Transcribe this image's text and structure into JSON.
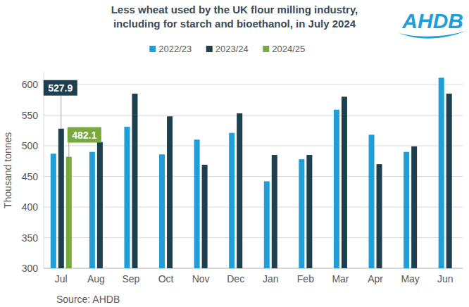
{
  "chart_data": {
    "type": "bar",
    "title": "Less wheat used by the UK flour milling industry, including for starch and bioethanol, in July 2024",
    "y_label": "Thousand tonnes",
    "source": "Source: AHDB",
    "logo": "AHDB",
    "categories": [
      "Jul",
      "Aug",
      "Sep",
      "Oct",
      "Nov",
      "Dec",
      "Jan",
      "Feb",
      "Mar",
      "Apr",
      "May",
      "Jun"
    ],
    "series": [
      {
        "name": "2022/23",
        "color": "#1f9ed8",
        "values": [
          487,
          490,
          531,
          486,
          510,
          521,
          442,
          478,
          559,
          518,
          490,
          611
        ]
      },
      {
        "name": "2023/24",
        "color": "#1d3f4e",
        "values": [
          527.9,
          506,
          585,
          548,
          469,
          553,
          485,
          485,
          580,
          470,
          499,
          585
        ]
      },
      {
        "name": "2024/25",
        "color": "#78a93b",
        "values": [
          482.1,
          null,
          null,
          null,
          null,
          null,
          null,
          null,
          null,
          null,
          null,
          null
        ]
      }
    ],
    "annotations": [
      "527.9",
      "482.1"
    ],
    "ylim": [
      300,
      620
    ],
    "yticks": [
      300,
      350,
      400,
      450,
      500,
      550,
      600
    ],
    "grid": true,
    "legend": "top"
  }
}
